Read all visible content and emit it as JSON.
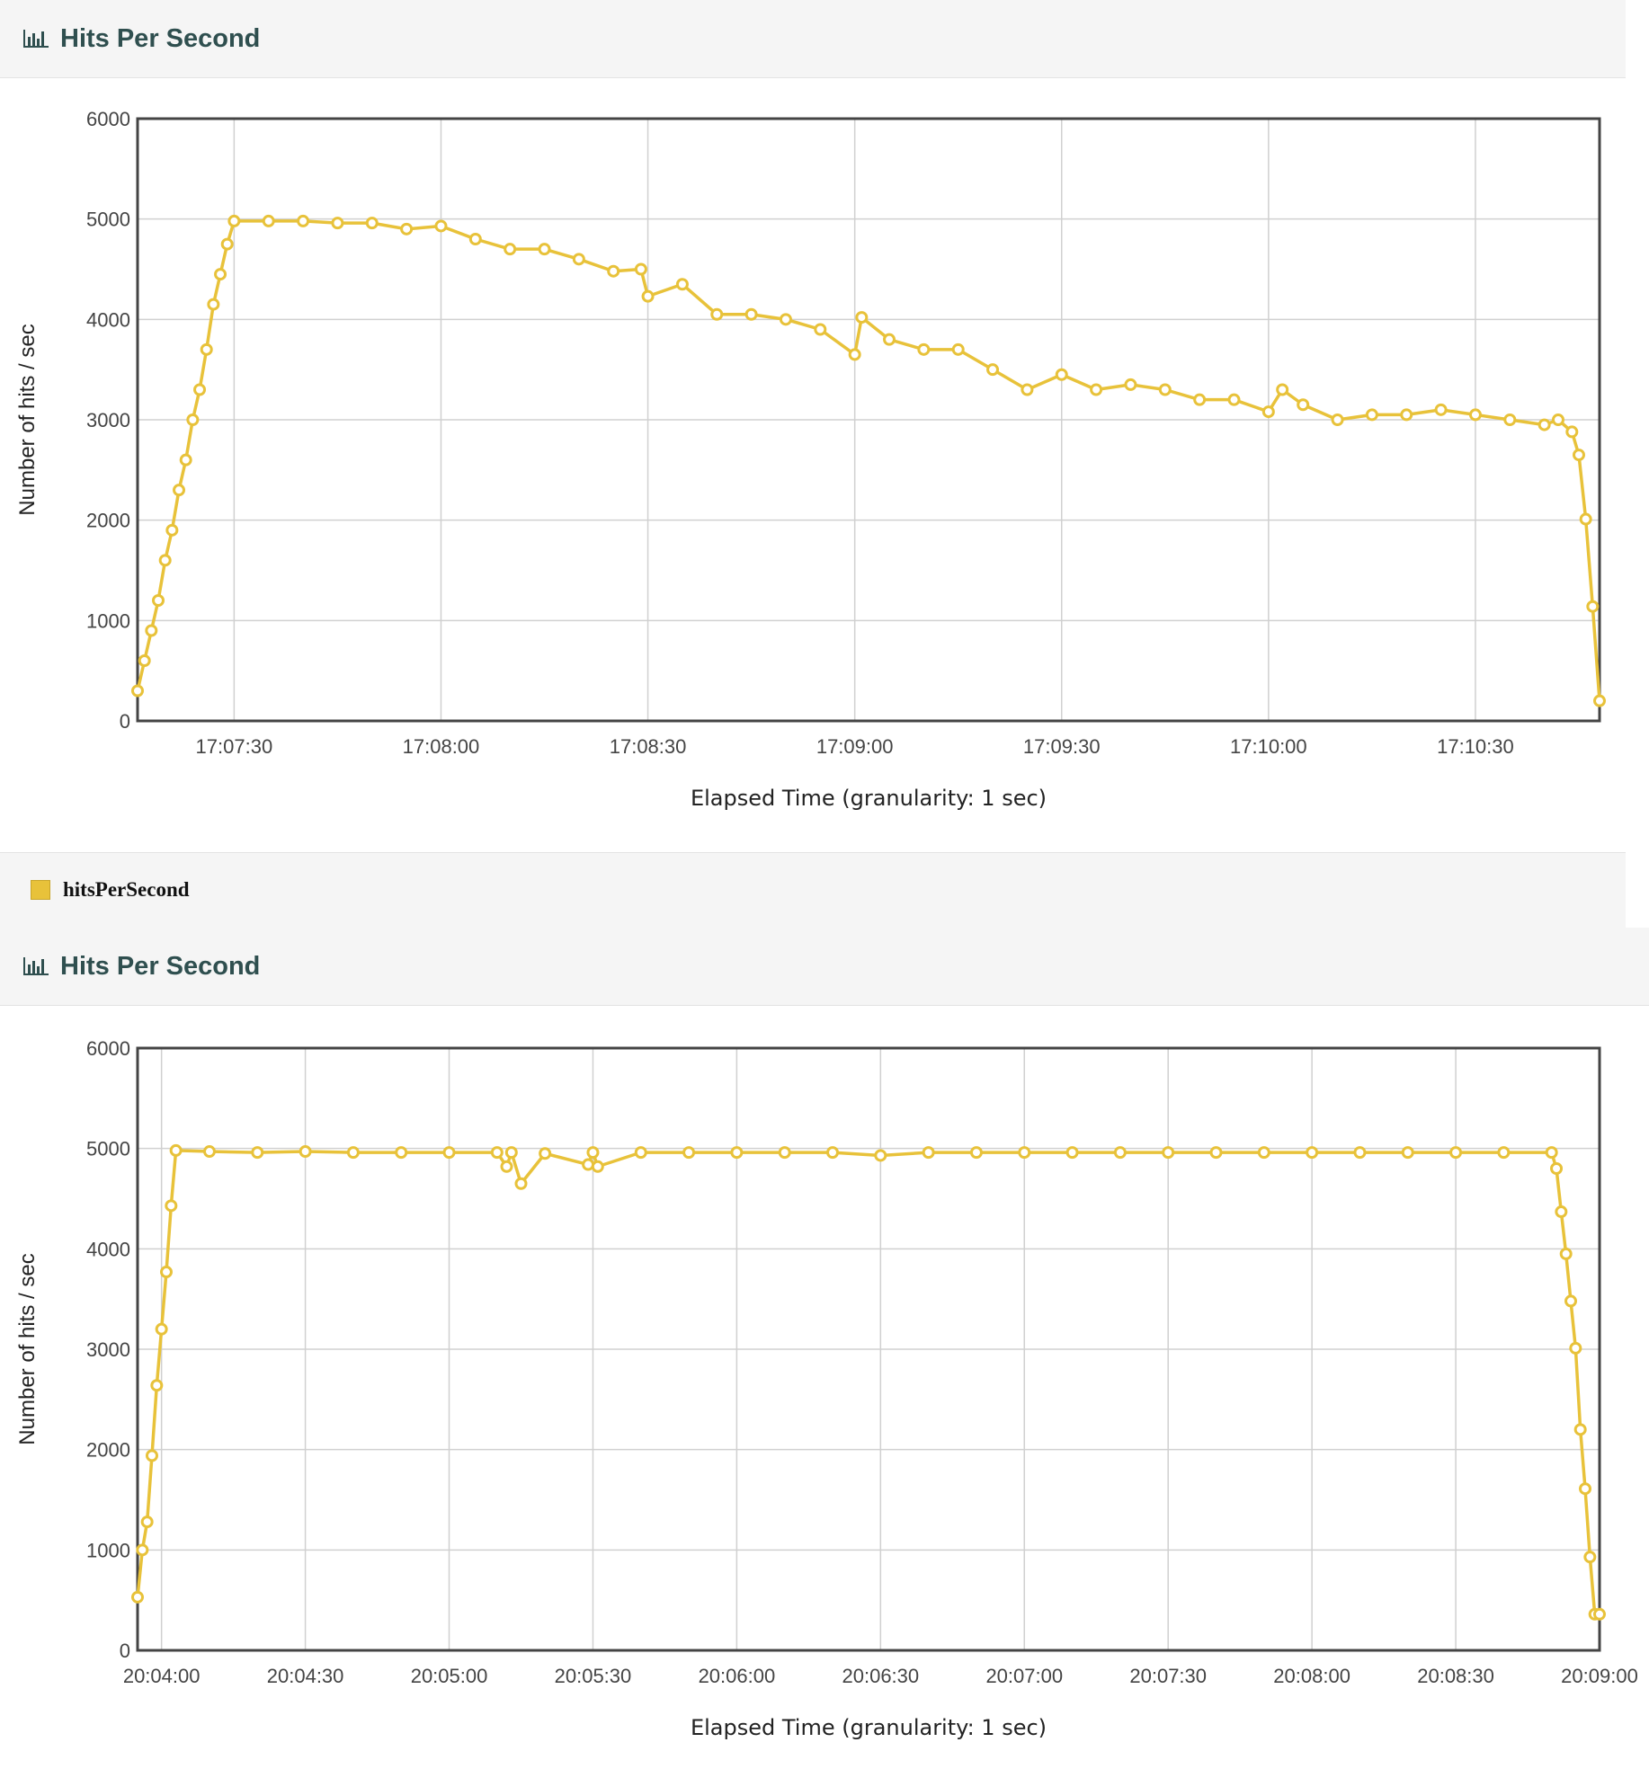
{
  "panels": [
    {
      "title": "Hits Per Second",
      "icon": "bar-chart-icon"
    },
    {
      "title": "Hits Per Second",
      "icon": "bar-chart-icon"
    }
  ],
  "legend": {
    "label": "hitsPerSecond",
    "color": "#e8c23a"
  },
  "colors": {
    "series": "#e8c23a",
    "marker_stroke": "#e8c23a",
    "marker_fill": "#ffffff",
    "grid": "#d0d0d0",
    "frame": "#444444"
  },
  "chart_data": [
    {
      "type": "line",
      "xlabel": "Elapsed Time (granularity: 1 sec)",
      "ylabel": "Number of hits / sec",
      "ylim": [
        0,
        6000
      ],
      "yticks": [
        "0",
        "1000",
        "2000",
        "3000",
        "4000",
        "5000",
        "6000"
      ],
      "xticks": [
        "17:07:30",
        "17:08:00",
        "17:08:30",
        "17:09:00",
        "17:09:30",
        "17:10:00",
        "17:10:30"
      ],
      "x_start": "17:07:16",
      "x_end": "17:10:48",
      "grid": true,
      "series": [
        {
          "name": "hitsPerSecond",
          "x": [
            "17:07:16",
            "17:07:17",
            "17:07:18",
            "17:07:19",
            "17:07:20",
            "17:07:21",
            "17:07:22",
            "17:07:23",
            "17:07:24",
            "17:07:25",
            "17:07:26",
            "17:07:27",
            "17:07:28",
            "17:07:29",
            "17:07:30",
            "17:07:35",
            "17:07:40",
            "17:07:45",
            "17:07:50",
            "17:07:55",
            "17:08:00",
            "17:08:05",
            "17:08:10",
            "17:08:15",
            "17:08:20",
            "17:08:25",
            "17:08:29",
            "17:08:30",
            "17:08:35",
            "17:08:40",
            "17:08:45",
            "17:08:50",
            "17:08:55",
            "17:09:00",
            "17:09:01",
            "17:09:05",
            "17:09:10",
            "17:09:15",
            "17:09:20",
            "17:09:25",
            "17:09:30",
            "17:09:35",
            "17:09:40",
            "17:09:45",
            "17:09:50",
            "17:09:55",
            "17:10:00",
            "17:10:02",
            "17:10:05",
            "17:10:10",
            "17:10:15",
            "17:10:20",
            "17:10:25",
            "17:10:30",
            "17:10:35",
            "17:10:40",
            "17:10:42",
            "17:10:44",
            "17:10:45",
            "17:10:46",
            "17:10:47",
            "17:10:48"
          ],
          "values": [
            300,
            600,
            900,
            1200,
            1600,
            1900,
            2300,
            2600,
            3000,
            3300,
            3700,
            4150,
            4450,
            4750,
            4980,
            4980,
            4980,
            4960,
            4960,
            4900,
            4930,
            4800,
            4700,
            4700,
            4600,
            4480,
            4500,
            4230,
            4350,
            4050,
            4050,
            4000,
            3900,
            3650,
            4020,
            3800,
            3700,
            3700,
            3500,
            3300,
            3450,
            3300,
            3350,
            3300,
            3200,
            3200,
            3080,
            3300,
            3150,
            3000,
            3050,
            3050,
            3100,
            3050,
            3000,
            2950,
            3000,
            2880,
            2650,
            2010,
            1140,
            200
          ]
        }
      ]
    },
    {
      "type": "line",
      "xlabel": "Elapsed Time (granularity: 1 sec)",
      "ylabel": "Number of hits / sec",
      "ylim": [
        0,
        6000
      ],
      "yticks": [
        "0",
        "1000",
        "2000",
        "3000",
        "4000",
        "5000",
        "6000"
      ],
      "xticks": [
        "20:04:00",
        "20:04:30",
        "20:05:00",
        "20:05:30",
        "20:06:00",
        "20:06:30",
        "20:07:00",
        "20:07:30",
        "20:08:00",
        "20:08:30",
        "20:09:00"
      ],
      "x_start": "20:03:55",
      "x_end": "20:09:00",
      "grid": true,
      "series": [
        {
          "name": "hitsPerSecond",
          "x": [
            "20:03:55",
            "20:03:56",
            "20:03:57",
            "20:03:58",
            "20:03:59",
            "20:04:00",
            "20:04:01",
            "20:04:02",
            "20:04:03",
            "20:04:10",
            "20:04:20",
            "20:04:30",
            "20:04:40",
            "20:04:50",
            "20:05:00",
            "20:05:10",
            "20:05:12",
            "20:05:13",
            "20:05:15",
            "20:05:20",
            "20:05:29",
            "20:05:30",
            "20:05:31",
            "20:05:40",
            "20:05:50",
            "20:06:00",
            "20:06:10",
            "20:06:20",
            "20:06:30",
            "20:06:40",
            "20:06:50",
            "20:07:00",
            "20:07:10",
            "20:07:20",
            "20:07:30",
            "20:07:40",
            "20:07:50",
            "20:08:00",
            "20:08:10",
            "20:08:20",
            "20:08:30",
            "20:08:40",
            "20:08:50",
            "20:08:51",
            "20:08:52",
            "20:08:53",
            "20:08:54",
            "20:08:55",
            "20:08:56",
            "20:08:57",
            "20:08:58",
            "20:08:59",
            "20:09:00"
          ],
          "values": [
            530,
            1000,
            1280,
            1940,
            2640,
            3200,
            3770,
            4430,
            4980,
            4970,
            4960,
            4970,
            4960,
            4960,
            4960,
            4960,
            4820,
            4960,
            4650,
            4950,
            4840,
            4960,
            4820,
            4960,
            4960,
            4960,
            4960,
            4960,
            4930,
            4960,
            4960,
            4960,
            4960,
            4960,
            4960,
            4960,
            4960,
            4960,
            4960,
            4960,
            4960,
            4960,
            4960,
            4800,
            4370,
            3950,
            3480,
            3010,
            2200,
            1610,
            930,
            360,
            360
          ]
        }
      ]
    }
  ]
}
